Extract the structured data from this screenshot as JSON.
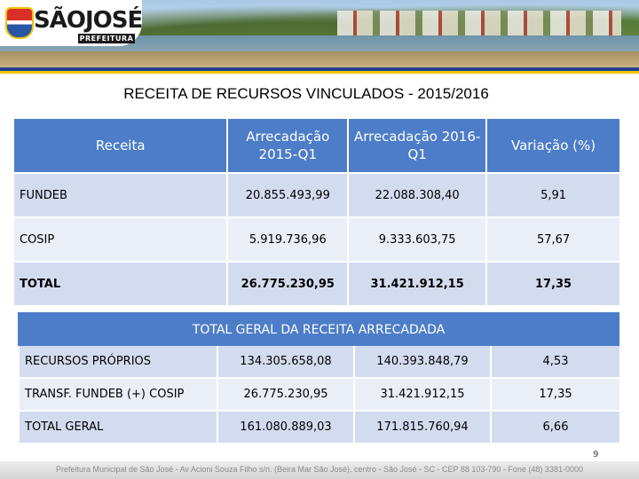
{
  "header": {
    "logo_text": "SÃOJOSÉ",
    "logo_subtitle": "PREFEITURA"
  },
  "title": "RECEITA DE RECURSOS VINCULADOS  -  2015/2016",
  "table1": {
    "headers": [
      "Receita",
      "Arrecadação 2015-Q1",
      "Arrecadação 2016-Q1",
      "Variação (%)"
    ],
    "rows": [
      [
        "FUNDEB",
        "20.855.493,99",
        "22.088.308,40",
        "5,91"
      ],
      [
        "COSIP",
        "5.919.736,96",
        "9.333.603,75",
        "57,67"
      ],
      [
        "TOTAL",
        "26.775.230,95",
        "31.421.912,15",
        "17,35"
      ]
    ]
  },
  "section2_title": "TOTAL  GERAL DA RECEITA ARRECADADA",
  "table2": {
    "rows": [
      [
        "RECURSOS PRÓPRIOS",
        "134.305.658,08",
        "140.393.848,79",
        "4,53"
      ],
      [
        "TRANSF. FUNDEB (+) COSIP",
        "26.775.230,95",
        "31.421.912,15",
        "17,35"
      ],
      [
        "TOTAL GERAL",
        "161.080.889,03",
        "171.815.760,94",
        "6,66"
      ]
    ]
  },
  "page_number": "9",
  "footer": "Prefeitura Municipal de São José - Av Acioni Souza Filho s/n. (Beira Mar São José), centro - São José - SC - CEP 88 103-790 - Fone (48) 3381-0000",
  "colors": {
    "header_blue": "#4d7dc8",
    "row_dark": "#d3dcef",
    "row_light": "#e9eef7",
    "stripe_blue": "#1f3f8f",
    "stripe_yellow": "#f4c300"
  }
}
